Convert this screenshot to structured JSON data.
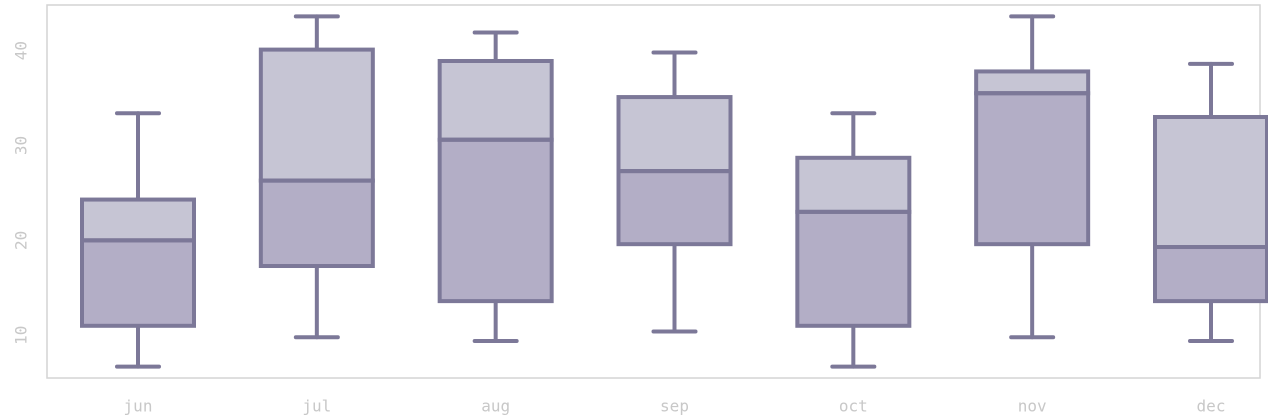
{
  "chart_data": {
    "type": "boxplot",
    "title": "",
    "xlabel": "",
    "ylabel": "",
    "ylim": [
      5.5,
      44.8
    ],
    "yticks": [
      10,
      20,
      30,
      40
    ],
    "grid": false,
    "legend": "none",
    "categories": [
      "jun",
      "jul",
      "aug",
      "sep",
      "oct",
      "nov",
      "dec"
    ],
    "boxes": [
      {
        "category": "jun",
        "whisker_low": 6.7,
        "q1": 11.0,
        "median": 20.0,
        "q3": 24.3,
        "whisker_high": 33.4
      },
      {
        "category": "jul",
        "whisker_low": 9.8,
        "q1": 17.3,
        "median": 26.3,
        "q3": 40.1,
        "whisker_high": 43.6
      },
      {
        "category": "aug",
        "whisker_low": 9.4,
        "q1": 13.6,
        "median": 30.6,
        "q3": 38.9,
        "whisker_high": 41.9
      },
      {
        "category": "sep",
        "whisker_low": 10.4,
        "q1": 19.6,
        "median": 27.3,
        "q3": 35.1,
        "whisker_high": 39.8
      },
      {
        "category": "oct",
        "whisker_low": 6.7,
        "q1": 11.0,
        "median": 23.0,
        "q3": 28.7,
        "whisker_high": 33.4
      },
      {
        "category": "nov",
        "whisker_low": 9.8,
        "q1": 19.6,
        "median": 35.5,
        "q3": 37.8,
        "whisker_high": 43.6
      },
      {
        "category": "dec",
        "whisker_low": 9.4,
        "q1": 13.6,
        "median": 19.3,
        "q3": 33.0,
        "whisker_high": 38.6
      }
    ],
    "colors": {
      "line": "#7c7898",
      "box_lower": "#b3aec6",
      "box_upper": "#c6c5d4",
      "frame": "#d4d4d4",
      "tick_text": "#c8c8c8"
    }
  }
}
